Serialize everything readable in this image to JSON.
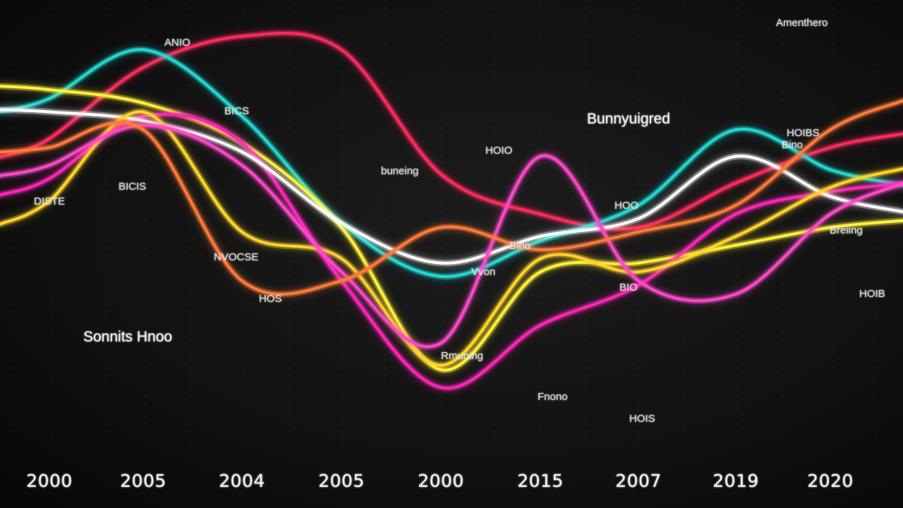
{
  "chart_data": {
    "type": "line",
    "x": [
      "2000",
      "2005",
      "2004",
      "2005",
      "2000",
      "2015",
      "2007",
      "2019",
      "2020"
    ],
    "grid": true,
    "ylim": [
      0,
      100
    ],
    "series": [
      {
        "color": "#ff2a5c",
        "values": [
          72,
          88,
          95,
          92,
          64,
          55,
          52,
          62,
          70
        ]
      },
      {
        "color": "#22d8d0",
        "values": [
          81,
          92,
          77,
          53,
          41,
          49,
          57,
          74,
          65
        ]
      },
      {
        "color": "#fff23a",
        "values": [
          83,
          80,
          71,
          52,
          20,
          42,
          44,
          48,
          52
        ]
      },
      {
        "color": "#ff25b8",
        "values": [
          63,
          77,
          71,
          40,
          16,
          30,
          39,
          55,
          60
        ]
      },
      {
        "color": "#ffffff",
        "values": [
          78,
          76,
          69,
          53,
          44,
          50,
          54,
          68,
          59
        ]
      },
      {
        "color": "#ffd52a",
        "values": [
          58,
          78,
          51,
          45,
          21,
          45,
          42,
          50,
          61
        ]
      },
      {
        "color": "#ff48c8",
        "values": [
          66,
          75,
          66,
          42,
          26,
          68,
          40,
          37,
          55
        ]
      },
      {
        "color": "#ff7a3a",
        "values": [
          70,
          74,
          40,
          40,
          52,
          47,
          51,
          57,
          74
        ]
      }
    ],
    "annotations": [
      {
        "text": "Amenthero",
        "size": "s"
      },
      {
        "text": "Bunnyuigred",
        "size": "l"
      },
      {
        "text": "Sonnits Hnoo",
        "size": "l"
      },
      {
        "text": "BICS",
        "size": "s"
      },
      {
        "text": "ANIO",
        "size": "s"
      },
      {
        "text": "HOIO",
        "size": "s"
      },
      {
        "text": "buneing",
        "size": "s"
      },
      {
        "text": "BICIS",
        "size": "s"
      },
      {
        "text": "DISTE",
        "size": "s"
      },
      {
        "text": "HOIBS",
        "size": "s"
      },
      {
        "text": "NVOCSE",
        "size": "s"
      },
      {
        "text": "Bino",
        "size": "s"
      },
      {
        "text": "Vvon",
        "size": "s"
      },
      {
        "text": "HOO",
        "size": "s"
      },
      {
        "text": "Rmuning",
        "size": "s"
      },
      {
        "text": "Fnono",
        "size": "s"
      },
      {
        "text": "HOIS",
        "size": "s"
      },
      {
        "text": "Bino",
        "size": "s"
      },
      {
        "text": "Breiing",
        "size": "s"
      },
      {
        "text": "HOIB",
        "size": "s"
      },
      {
        "text": "BIO",
        "size": "s"
      },
      {
        "text": "HOS",
        "size": "s"
      }
    ]
  }
}
